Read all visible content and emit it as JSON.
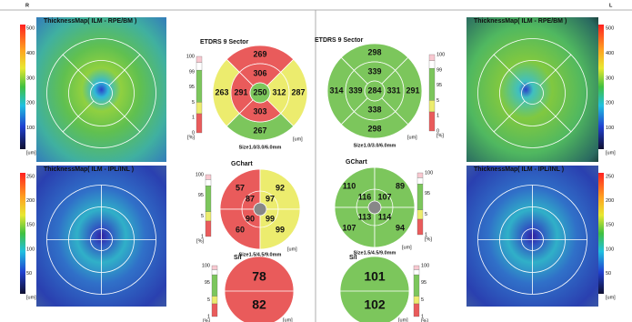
{
  "corner_labels": [
    "R",
    "L"
  ],
  "left": {
    "map_top": {
      "title": "ThicknessMap( ILM - RPE/BM )",
      "scale": [
        "500",
        "400",
        "300",
        "200",
        "100",
        "[um]"
      ]
    },
    "etdrs": {
      "title": "ETDRS 9 Sector",
      "scale": [
        "100",
        "99",
        "95",
        "5",
        "1",
        "0",
        "[%]"
      ],
      "center": 250,
      "center_color": "#7cc65c",
      "inner": [
        306,
        312,
        303,
        291
      ],
      "inner_colors": [
        "#e95b5b",
        "#ecec6e",
        "#e95b5b",
        "#e95b5b"
      ],
      "outer": [
        269,
        287,
        267,
        263
      ],
      "outer_colors": [
        "#e95b5b",
        "#ecec6e",
        "#7cc65c",
        "#ecec6e"
      ],
      "unit": "[um]",
      "size": "Size1.0/3.0/6.0mm"
    },
    "map_bottom": {
      "title": "ThicknessMap( ILM - IPL/INL )",
      "scale": [
        "250",
        "200",
        "150",
        "100",
        "50",
        "[um]"
      ]
    },
    "gchart": {
      "title": "GChart",
      "scale": [
        "100",
        "95",
        "5",
        "1",
        "[%]"
      ],
      "quadrants": [
        {
          "outer": 57,
          "inner": 87,
          "color": "#e95b5b"
        },
        {
          "outer": 92,
          "inner": 97,
          "color": "#ecec6e"
        },
        {
          "outer": 60,
          "inner": 90,
          "color": "#e95b5b"
        },
        {
          "outer": 99,
          "inner": 99,
          "color": "#ecec6e"
        }
      ],
      "unit": "[um]",
      "size": "Size1.5/4.5/9.0mm"
    },
    "si": {
      "title": "S/I",
      "scale": [
        "100",
        "95",
        "5",
        "1",
        "[%]"
      ],
      "values": [
        78,
        82
      ],
      "color": "#e95b5b",
      "unit": "[um]",
      "size": "Size9.0mm"
    }
  },
  "right": {
    "map_top": {
      "title": "ThicknessMap( ILM - RPE/BM )",
      "scale": [
        "500",
        "400",
        "300",
        "200",
        "100",
        "[um]"
      ]
    },
    "etdrs": {
      "title": "ETDRS 9 Sector",
      "scale": [
        "100",
        "99",
        "95",
        "5",
        "1",
        "0",
        "[%]"
      ],
      "center": 284,
      "center_color": "#7cc65c",
      "inner": [
        339,
        331,
        338,
        339
      ],
      "inner_colors": [
        "#7cc65c",
        "#7cc65c",
        "#7cc65c",
        "#7cc65c"
      ],
      "outer": [
        298,
        291,
        298,
        314
      ],
      "outer_colors": [
        "#7cc65c",
        "#7cc65c",
        "#7cc65c",
        "#7cc65c"
      ],
      "unit": "[um]",
      "size": "Size1.0/3.0/6.0mm"
    },
    "map_bottom": {
      "title": "ThicknessMap( ILM - IPL/INL )",
      "scale": [
        "250",
        "200",
        "150",
        "100",
        "50",
        "[um]"
      ]
    },
    "gchart": {
      "title": "GChart",
      "scale": [
        "100",
        "95",
        "5",
        "1",
        "[%]"
      ],
      "quadrants": [
        {
          "outer": 110,
          "inner": 116,
          "color": "#7cc65c"
        },
        {
          "outer": 89,
          "inner": 107,
          "color": "#7cc65c"
        },
        {
          "outer": 107,
          "inner": 113,
          "color": "#7cc65c"
        },
        {
          "outer": 94,
          "inner": 114,
          "color": "#7cc65c"
        }
      ],
      "unit": "[um]",
      "size": "Size1.5/4.5/9.0mm"
    },
    "si": {
      "title": "S/I",
      "scale": [
        "100",
        "95",
        "5",
        "1",
        "[%]"
      ],
      "values": [
        101,
        102
      ],
      "color": "#7cc65c",
      "unit": "[um]",
      "size": "Size9.0mm"
    }
  }
}
